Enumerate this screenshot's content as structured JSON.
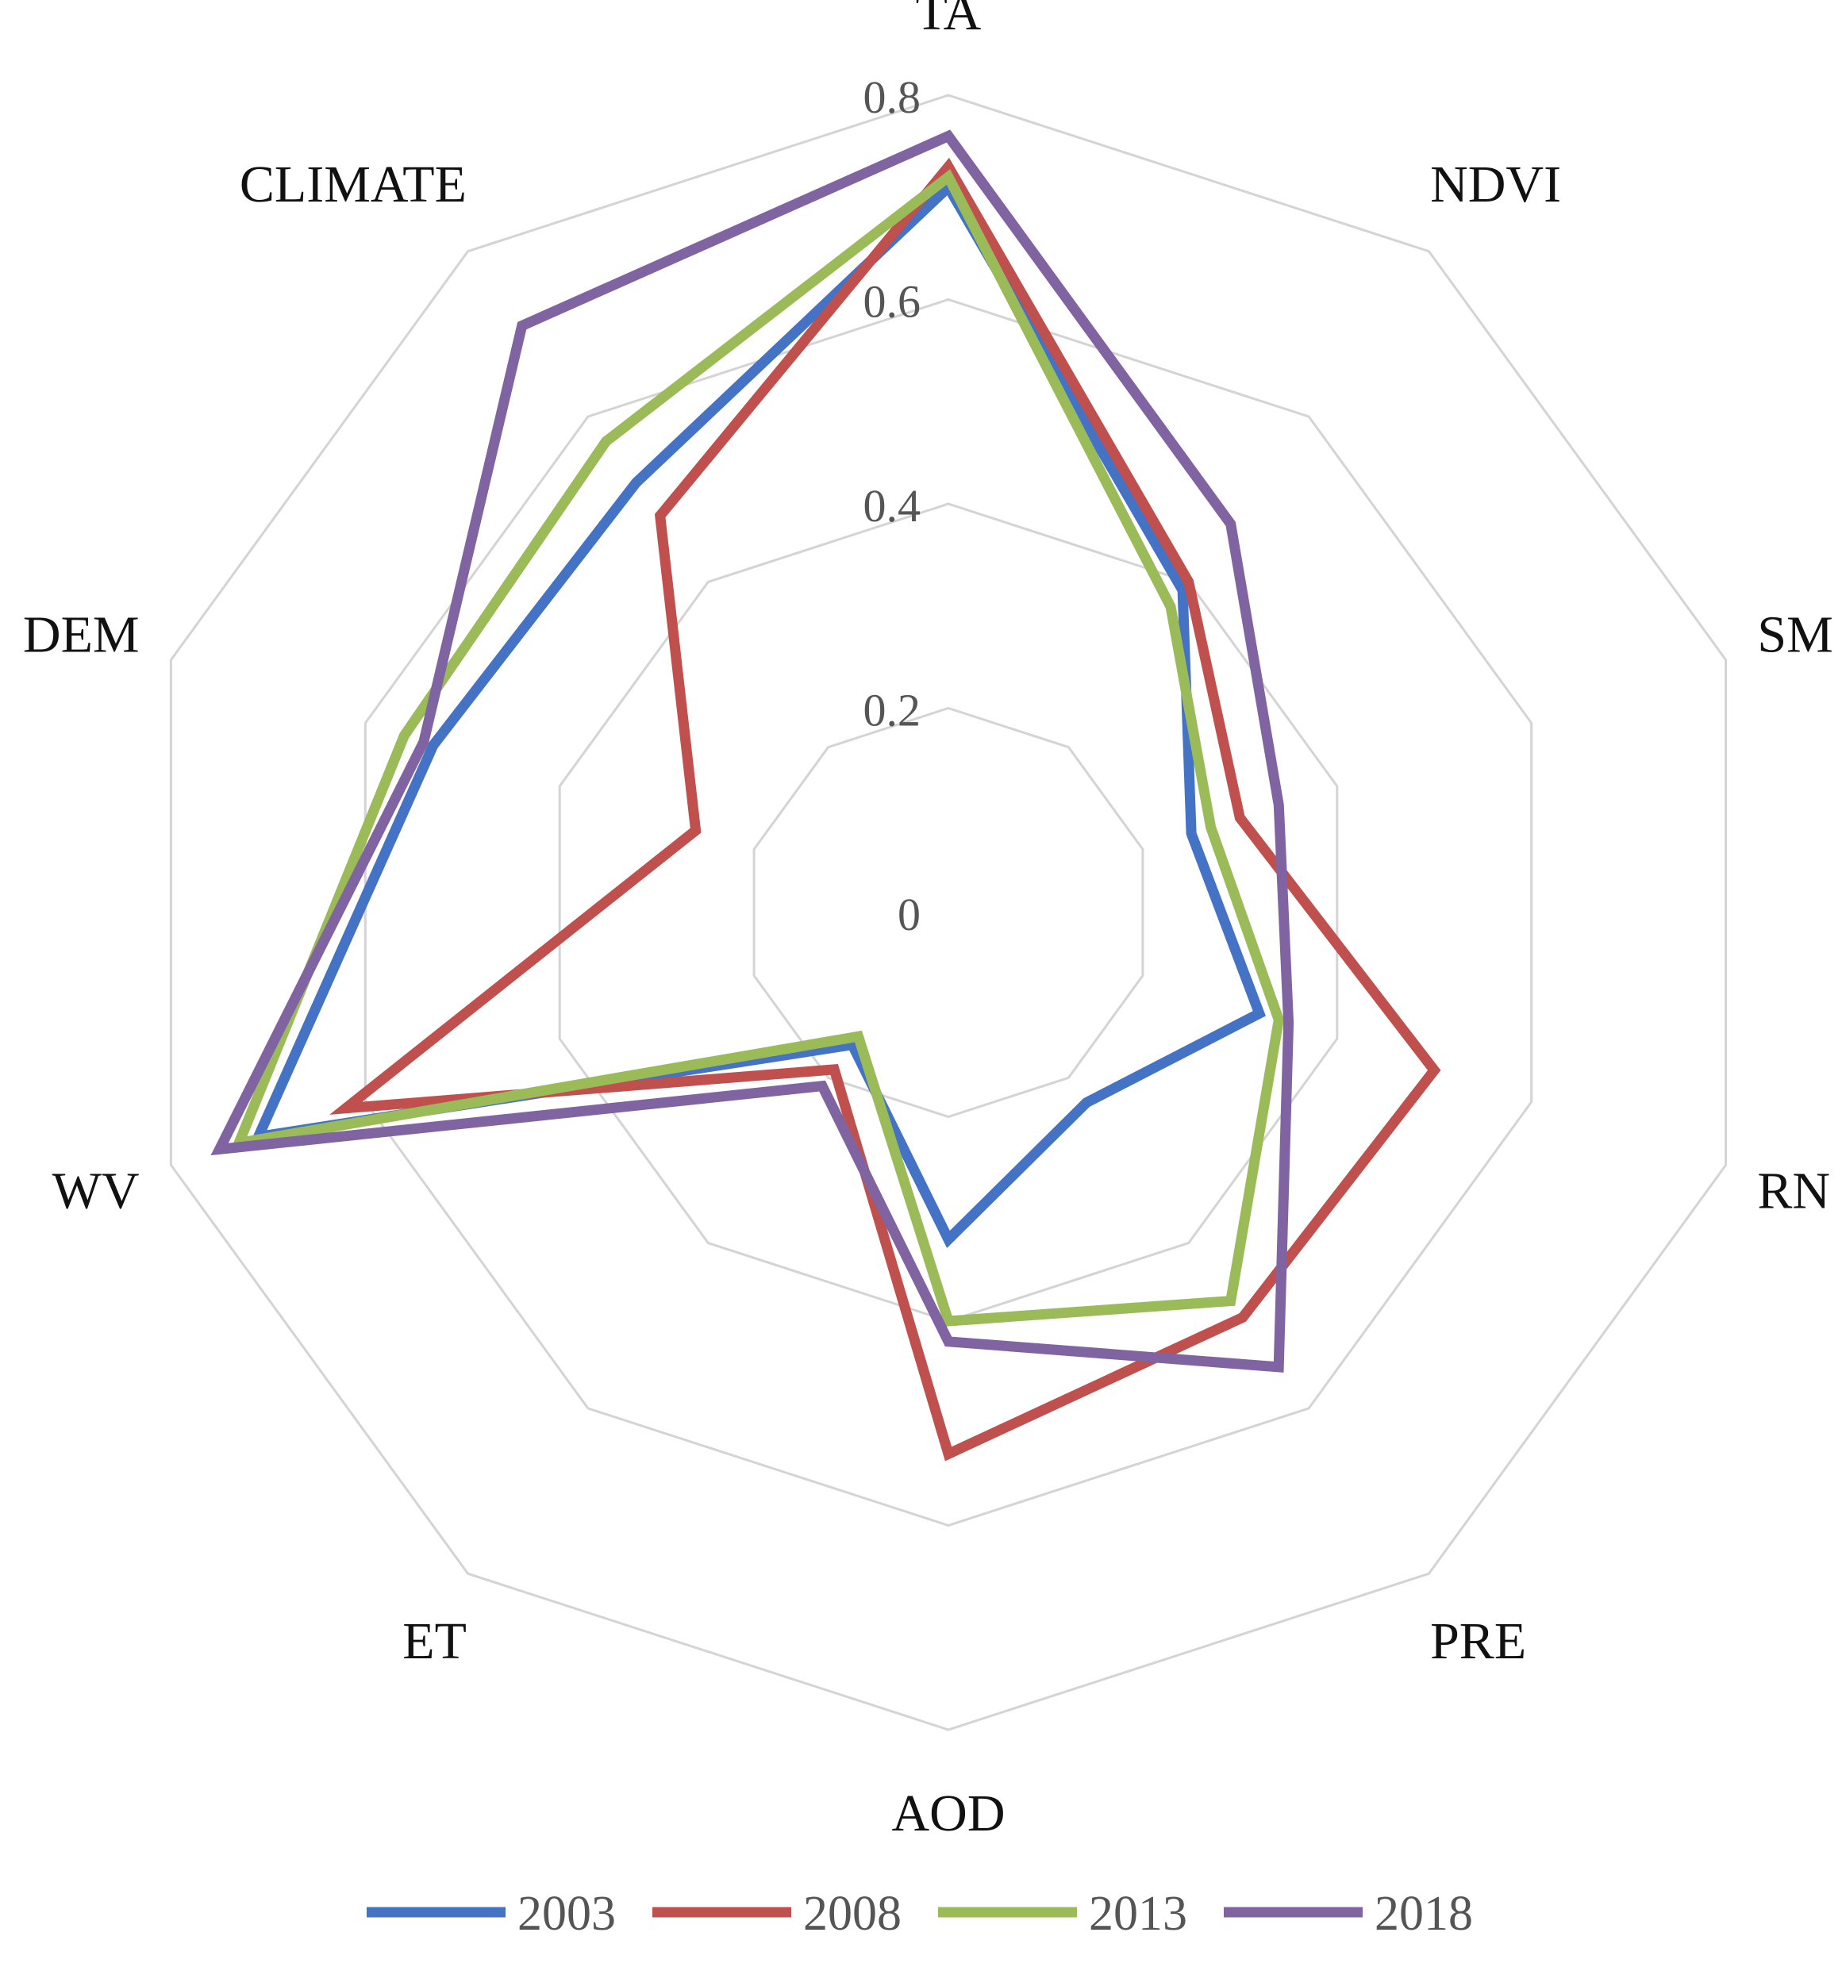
{
  "chart_data": {
    "type": "radar",
    "axes": [
      "TA",
      "NDVI",
      "SM",
      "RN",
      "PRE",
      "AOD",
      "ET",
      "WV",
      "DEM",
      "CLIMATE"
    ],
    "rlim": [
      0,
      0.8
    ],
    "ticks": [
      "0",
      "0.2",
      "0.4",
      "0.6",
      "0.8"
    ],
    "grid": true,
    "legend_position": "bottom",
    "series": [
      {
        "name": "2003",
        "color": "#4472C4",
        "values": [
          0.71,
          0.39,
          0.25,
          0.32,
          0.23,
          0.32,
          0.16,
          0.71,
          0.53,
          0.52
        ]
      },
      {
        "name": "2008",
        "color": "#C0504D",
        "values": [
          0.73,
          0.4,
          0.3,
          0.5,
          0.49,
          0.53,
          0.19,
          0.62,
          0.26,
          0.48
        ]
      },
      {
        "name": "2013",
        "color": "#9BBB59",
        "values": [
          0.72,
          0.37,
          0.27,
          0.34,
          0.47,
          0.4,
          0.15,
          0.73,
          0.56,
          0.57
        ]
      },
      {
        "name": "2018",
        "color": "#8064A2",
        "values": [
          0.76,
          0.47,
          0.34,
          0.35,
          0.55,
          0.42,
          0.21,
          0.75,
          0.54,
          0.71
        ]
      }
    ]
  }
}
